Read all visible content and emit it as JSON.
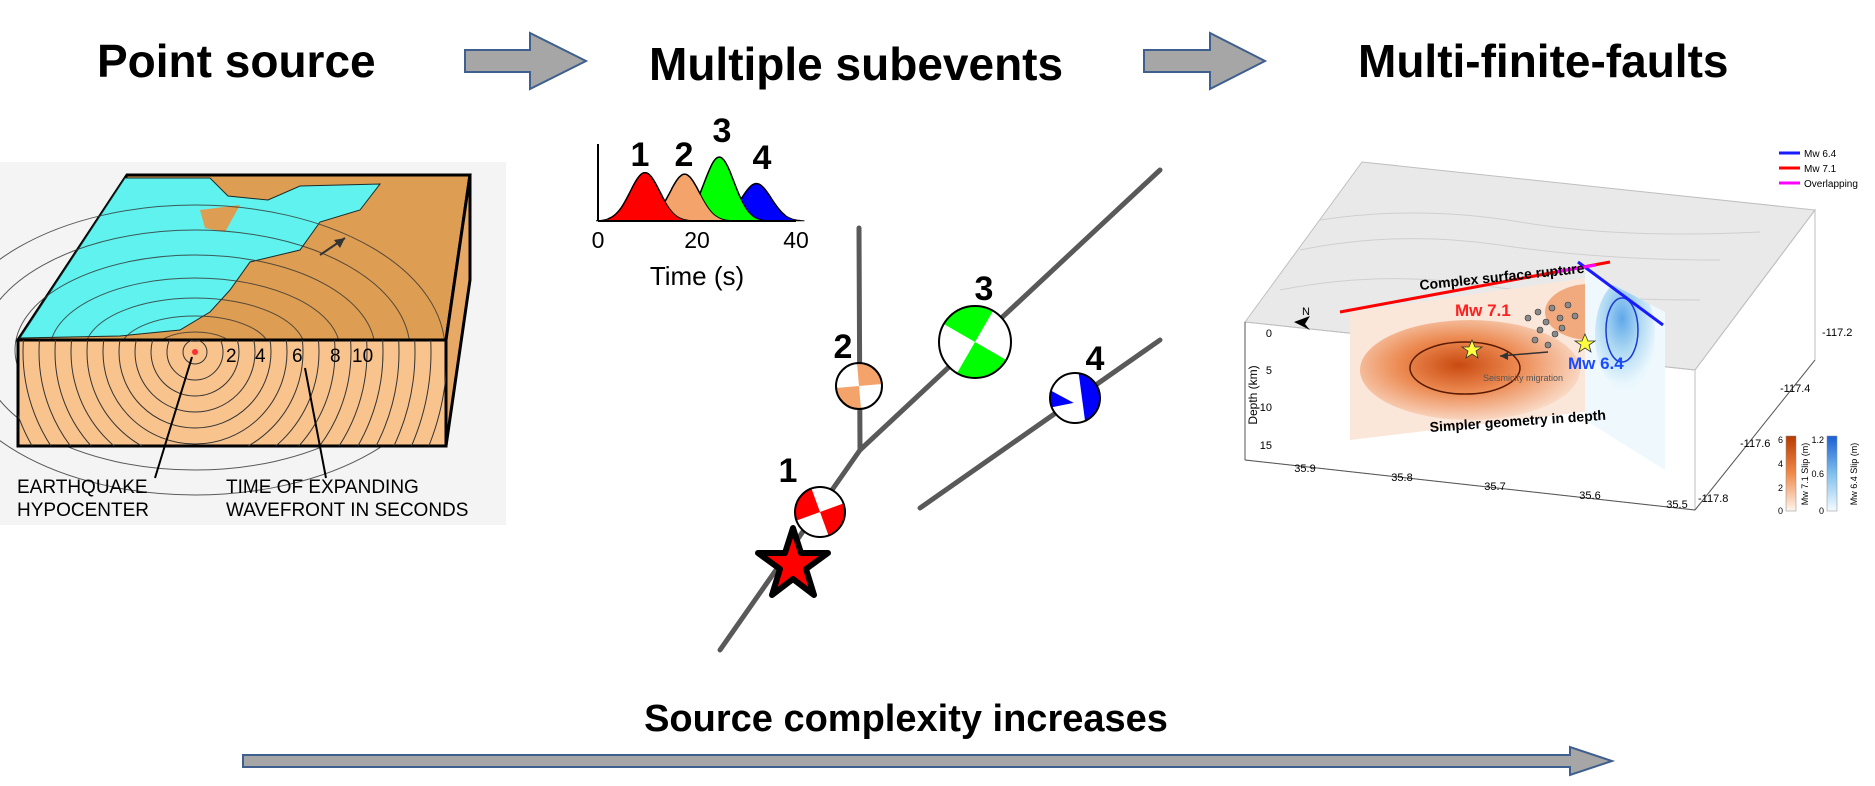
{
  "titles": {
    "point_source": "Point source",
    "multiple_subevents": "Multiple subevents",
    "multi_finite_faults": "Multi-finite-faults"
  },
  "point_source_panel": {
    "ring_labels": [
      "2",
      "4",
      "6",
      "8",
      "10"
    ],
    "hypocenter_label": [
      "EARTHQUAKE",
      "HYPOCENTER"
    ],
    "wavefront_label": [
      "TIME OF EXPANDING",
      "WAVEFRONT IN SECONDS"
    ]
  },
  "subevents_panel": {
    "time_axis": {
      "label": "Time (s)",
      "ticks": [
        "0",
        "20",
        "40"
      ]
    },
    "pulses": [
      {
        "id": "1",
        "center_s": 9.5,
        "amplitude": 0.62,
        "color": "#ff0000"
      },
      {
        "id": "2",
        "center_s": 17.5,
        "amplitude": 0.6,
        "color": "#f4a46a"
      },
      {
        "id": "3",
        "center_s": 24.5,
        "amplitude": 0.82,
        "color": "#00ff00"
      },
      {
        "id": "4",
        "center_s": 32.0,
        "amplitude": 0.48,
        "color": "#0000ff"
      }
    ],
    "beachball_labels": [
      "1",
      "2",
      "3",
      "4"
    ]
  },
  "finite_fault_panel": {
    "legend": [
      {
        "label": "Mw 6.4",
        "color": "#1a1aff"
      },
      {
        "label": "Mw 7.1",
        "color": "#ff0000"
      },
      {
        "label": "Overlapping",
        "color": "#ff00ff"
      }
    ],
    "annotations": {
      "surface": "Complex surface rupture",
      "mw71": "Mw 7.1",
      "mw64": "Mw 6.4",
      "migration": "Seismicity migration",
      "simpler": "Simpler geometry in depth",
      "north": "N"
    },
    "depth_axis": {
      "label": "Depth (km)",
      "ticks": [
        "0",
        "5",
        "10",
        "15"
      ]
    },
    "lat_ticks": [
      "35.9",
      "35.8",
      "35.7",
      "35.6",
      "35.5"
    ],
    "lon_ticks": [
      "-117.2",
      "-117.4",
      "-117.6",
      "-117.8"
    ],
    "colorbar_71": {
      "label": "Mw 7.1 Slip (m)",
      "ticks": [
        "6",
        "4",
        "2",
        "0"
      ]
    },
    "colorbar_64": {
      "label": "Mw 6.4 Slip (m)",
      "ticks": [
        "1.2",
        "0.6",
        "0"
      ]
    }
  },
  "footer": {
    "caption": "Source complexity increases"
  }
}
